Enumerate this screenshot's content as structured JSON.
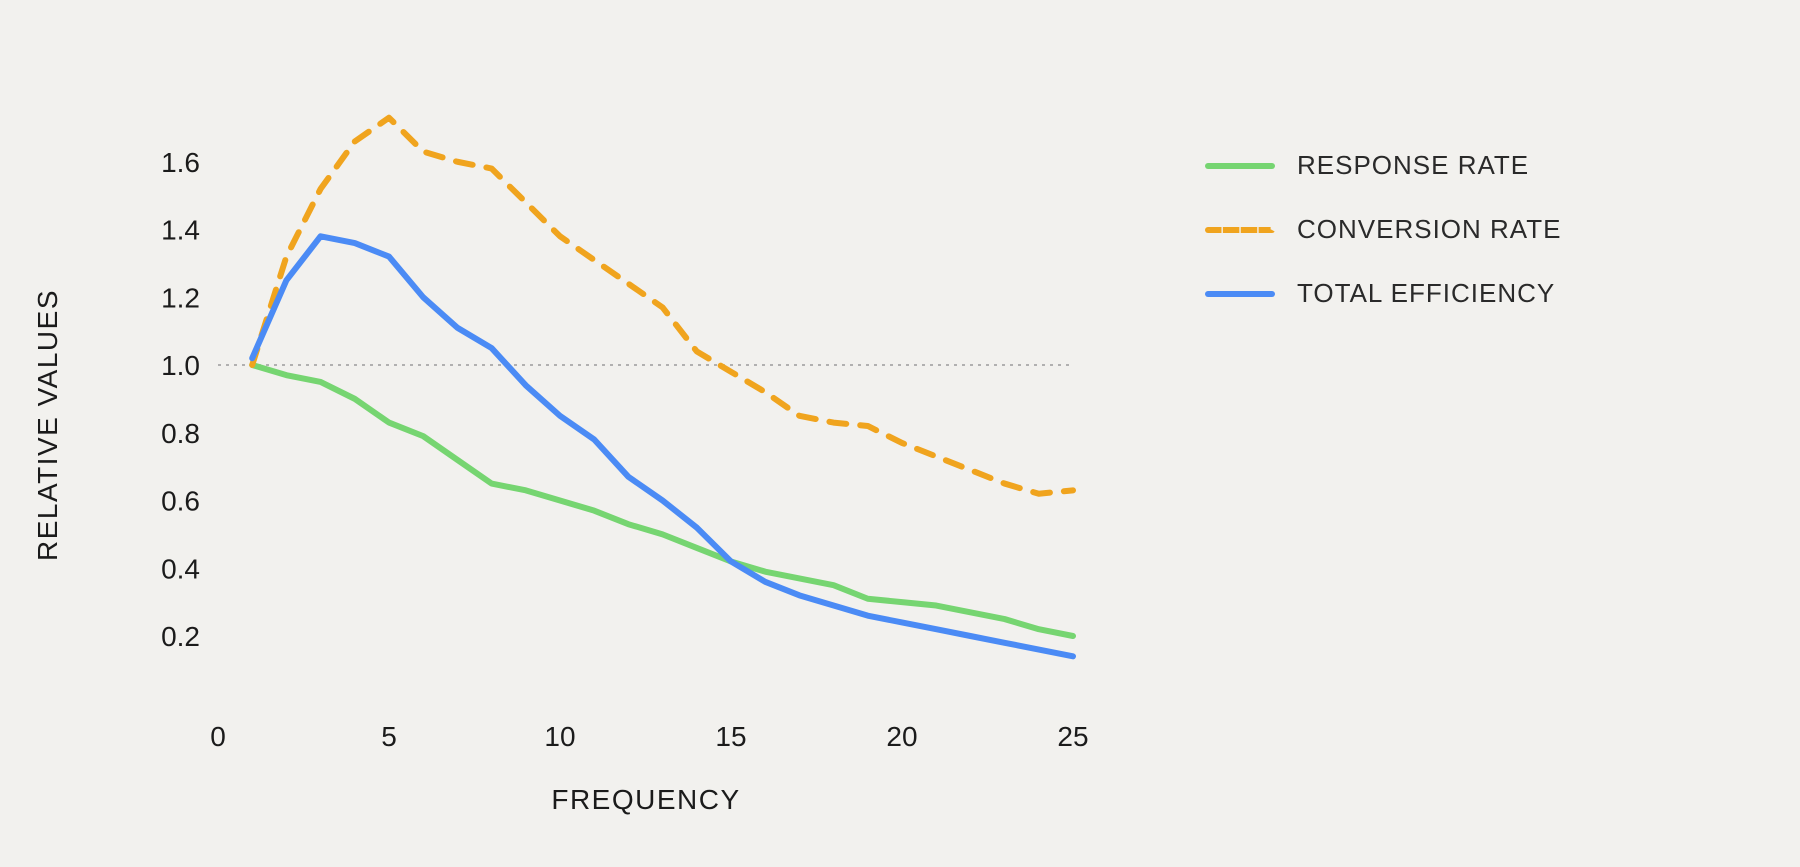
{
  "chart_data": {
    "type": "line",
    "title": "",
    "xlabel": "FREQUENCY",
    "ylabel": "RELATIVE VALUES",
    "background": "#f2f1ee",
    "grid": false,
    "legend_position": "right",
    "x": [
      1,
      2,
      3,
      4,
      5,
      6,
      7,
      8,
      9,
      10,
      11,
      12,
      13,
      14,
      15,
      16,
      17,
      18,
      19,
      20,
      21,
      22,
      23,
      24,
      25
    ],
    "xlim": [
      0,
      25
    ],
    "ylim": [
      0.05,
      1.9
    ],
    "xticks": {
      "values": [
        0,
        5,
        10,
        15,
        20,
        25
      ],
      "labels": [
        "0",
        "5",
        "10",
        "15",
        "20",
        "25"
      ]
    },
    "yticks": {
      "values": [
        0.2,
        0.4,
        0.6,
        0.8,
        1.0,
        1.2,
        1.4,
        1.6
      ],
      "labels": [
        "0.2",
        "0.4",
        "0.6",
        "0.8",
        "1.0",
        "1.2",
        "1.4",
        "1.6"
      ]
    },
    "reference_line": {
      "y": 1.0,
      "style": "dotted",
      "color": "#9b9b9b"
    },
    "series": [
      {
        "name": "RESPONSE RATE",
        "color": "#76d571",
        "dash": false,
        "values": [
          1.0,
          0.97,
          0.95,
          0.9,
          0.83,
          0.79,
          0.72,
          0.65,
          0.63,
          0.6,
          0.57,
          0.53,
          0.5,
          0.46,
          0.42,
          0.39,
          0.37,
          0.35,
          0.31,
          0.3,
          0.29,
          0.27,
          0.25,
          0.22,
          0.2
        ]
      },
      {
        "name": "CONVERSION RATE",
        "color": "#f0a41e",
        "dash": true,
        "values": [
          1.0,
          1.32,
          1.52,
          1.66,
          1.73,
          1.63,
          1.6,
          1.58,
          1.48,
          1.38,
          1.31,
          1.24,
          1.17,
          1.04,
          0.98,
          0.92,
          0.85,
          0.83,
          0.82,
          0.77,
          0.73,
          0.69,
          0.65,
          0.62,
          0.63
        ]
      },
      {
        "name": "TOTAL EFFICIENCY",
        "color": "#4b8bf5",
        "dash": false,
        "values": [
          1.02,
          1.25,
          1.38,
          1.36,
          1.32,
          1.2,
          1.11,
          1.05,
          0.94,
          0.85,
          0.78,
          0.67,
          0.6,
          0.52,
          0.42,
          0.36,
          0.32,
          0.29,
          0.26,
          0.24,
          0.22,
          0.2,
          0.18,
          0.16,
          0.14
        ]
      }
    ]
  }
}
